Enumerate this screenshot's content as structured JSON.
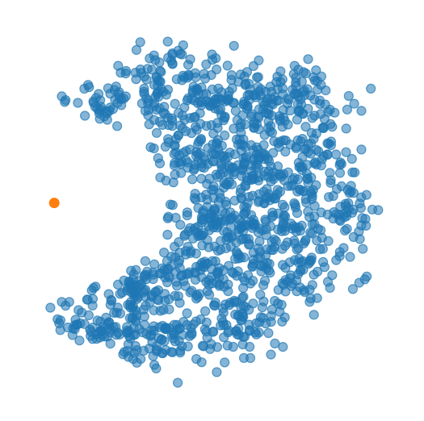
{
  "chart_data": {
    "type": "scatter",
    "title": "",
    "xlabel": "",
    "ylabel": "",
    "axes_visible": false,
    "grid": false,
    "legend": "none",
    "xlim": [
      0,
      100
    ],
    "ylim": [
      0,
      100
    ],
    "series": [
      {
        "color": "#1f77b4",
        "marker": "circle-outlined",
        "opacity": 0.55,
        "cluster_mask": "crescent",
        "clusters": [
          {
            "x": 40,
            "y": 82,
            "sx": 10,
            "sy": 6,
            "n": 120
          },
          {
            "x": 58,
            "y": 78,
            "sx": 8,
            "sy": 5,
            "n": 110
          },
          {
            "x": 74,
            "y": 80,
            "sx": 5,
            "sy": 4,
            "n": 50
          },
          {
            "x": 79,
            "y": 66,
            "sx": 6,
            "sy": 6,
            "n": 60
          },
          {
            "x": 58,
            "y": 62,
            "sx": 9,
            "sy": 6,
            "n": 140
          },
          {
            "x": 42,
            "y": 64,
            "sx": 5,
            "sy": 6,
            "n": 60
          },
          {
            "x": 66,
            "y": 50,
            "sx": 10,
            "sy": 6,
            "n": 130
          },
          {
            "x": 86,
            "y": 49,
            "sx": 4,
            "sy": 4,
            "n": 35
          },
          {
            "x": 50,
            "y": 47,
            "sx": 6,
            "sy": 5,
            "n": 60
          },
          {
            "x": 48,
            "y": 34,
            "sx": 10,
            "sy": 6,
            "n": 130
          },
          {
            "x": 72,
            "y": 36,
            "sx": 8,
            "sy": 6,
            "n": 100
          },
          {
            "x": 30,
            "y": 30,
            "sx": 7,
            "sy": 5,
            "n": 80
          },
          {
            "x": 20,
            "y": 20,
            "sx": 7,
            "sy": 3,
            "n": 60
          },
          {
            "x": 40,
            "y": 16,
            "sx": 8,
            "sy": 4,
            "n": 90
          },
          {
            "x": 58,
            "y": 20,
            "sx": 6,
            "sy": 4,
            "n": 60
          },
          {
            "x": 22,
            "y": 77,
            "sx": 5,
            "sy": 3,
            "n": 30
          }
        ],
        "points": [
          {
            "x": 11,
            "y": 79
          },
          {
            "x": 10,
            "y": 80
          },
          {
            "x": 16,
            "y": 82
          },
          {
            "x": 17,
            "y": 83
          },
          {
            "x": 11,
            "y": 25
          },
          {
            "x": 10,
            "y": 26
          },
          {
            "x": 12,
            "y": 26
          },
          {
            "x": 41,
            "y": 92
          },
          {
            "x": 42,
            "y": 91
          },
          {
            "x": 50,
            "y": 91
          },
          {
            "x": 51,
            "y": 90
          },
          {
            "x": 19,
            "y": 30
          },
          {
            "x": 18,
            "y": 29
          },
          {
            "x": 13,
            "y": 19
          },
          {
            "x": 14,
            "y": 20
          },
          {
            "x": 30,
            "y": 10
          },
          {
            "x": 31,
            "y": 11
          },
          {
            "x": 29,
            "y": 11
          },
          {
            "x": 72,
            "y": 88
          },
          {
            "x": 73,
            "y": 87
          },
          {
            "x": 75,
            "y": 86
          },
          {
            "x": 77,
            "y": 85
          },
          {
            "x": 78,
            "y": 84
          },
          {
            "x": 79,
            "y": 83
          },
          {
            "x": 88,
            "y": 60
          },
          {
            "x": 87,
            "y": 55
          },
          {
            "x": 84,
            "y": 62
          },
          {
            "x": 90,
            "y": 48
          },
          {
            "x": 91,
            "y": 46
          },
          {
            "x": 84,
            "y": 38
          },
          {
            "x": 82,
            "y": 33
          },
          {
            "x": 78,
            "y": 27
          },
          {
            "x": 76,
            "y": 26
          },
          {
            "x": 66,
            "y": 24
          },
          {
            "x": 63,
            "y": 22
          },
          {
            "x": 82,
            "y": 72
          },
          {
            "x": 80,
            "y": 74
          },
          {
            "x": 25,
            "y": 88
          },
          {
            "x": 27,
            "y": 86
          },
          {
            "x": 34,
            "y": 87
          },
          {
            "x": 36,
            "y": 84
          }
        ]
      },
      {
        "color": "#ff7f0e",
        "marker": "circle",
        "opacity": 1,
        "points": [
          {
            "x": 8,
            "y": 52
          }
        ]
      }
    ]
  }
}
